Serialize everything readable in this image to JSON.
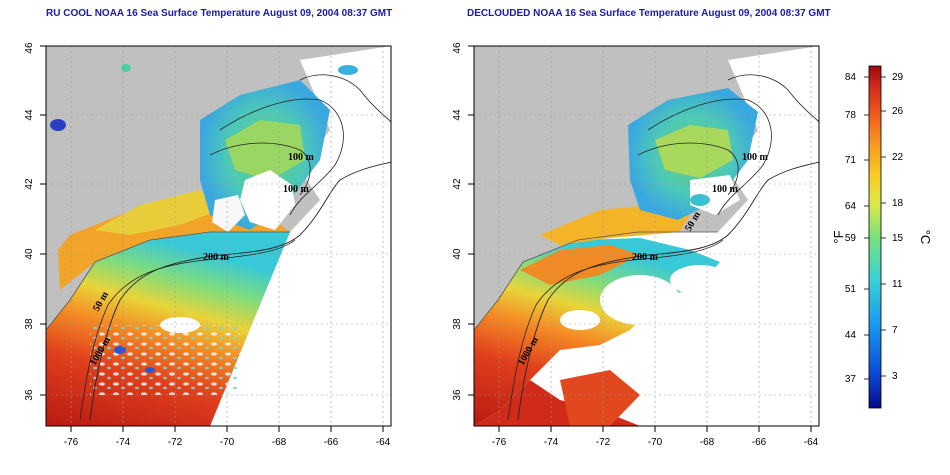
{
  "panels": [
    {
      "title": "RU COOL NOAA 16 Sea Surface Temperature August 09, 2004 08:37 GMT",
      "x_ticks": [
        "-76",
        "-74",
        "-72",
        "-70",
        "-68",
        "-66",
        "-64"
      ],
      "y_ticks": [
        "36",
        "38",
        "40",
        "42",
        "44",
        "46"
      ],
      "isobath_labels": [
        "100 m",
        "100 m",
        "200 m",
        "50 m",
        "1000 m"
      ]
    },
    {
      "title": "DECLOUDED NOAA 16 Sea Surface Temperature August 09, 2004 08:37 GMT",
      "x_ticks": [
        "-76",
        "-74",
        "-72",
        "-70",
        "-68",
        "-66",
        "-64"
      ],
      "y_ticks": [
        "36",
        "38",
        "40",
        "42",
        "44",
        "46"
      ],
      "isobath_labels": [
        "100 m",
        "100 m",
        "200 m",
        "50 m",
        "1000 m"
      ]
    }
  ],
  "colorbar": {
    "fahrenheit_ticks": [
      "84",
      "78",
      "71",
      "64",
      "59",
      "51",
      "44",
      "37"
    ],
    "celsius_ticks": [
      "29",
      "26",
      "22",
      "18",
      "15",
      "11",
      "7",
      "3"
    ],
    "left_unit": "°F",
    "right_unit": "°C",
    "colors": [
      "#08088a",
      "#0a4ad8",
      "#1a9cf0",
      "#3cd2d2",
      "#7ae27a",
      "#dce84a",
      "#f8cc22",
      "#f89422",
      "#ee5a1e",
      "#d42a1a",
      "#9a0a0a"
    ]
  },
  "colors": {
    "land": "#c0c0c0",
    "title": "#1a1aa8",
    "frame": "#000000"
  }
}
